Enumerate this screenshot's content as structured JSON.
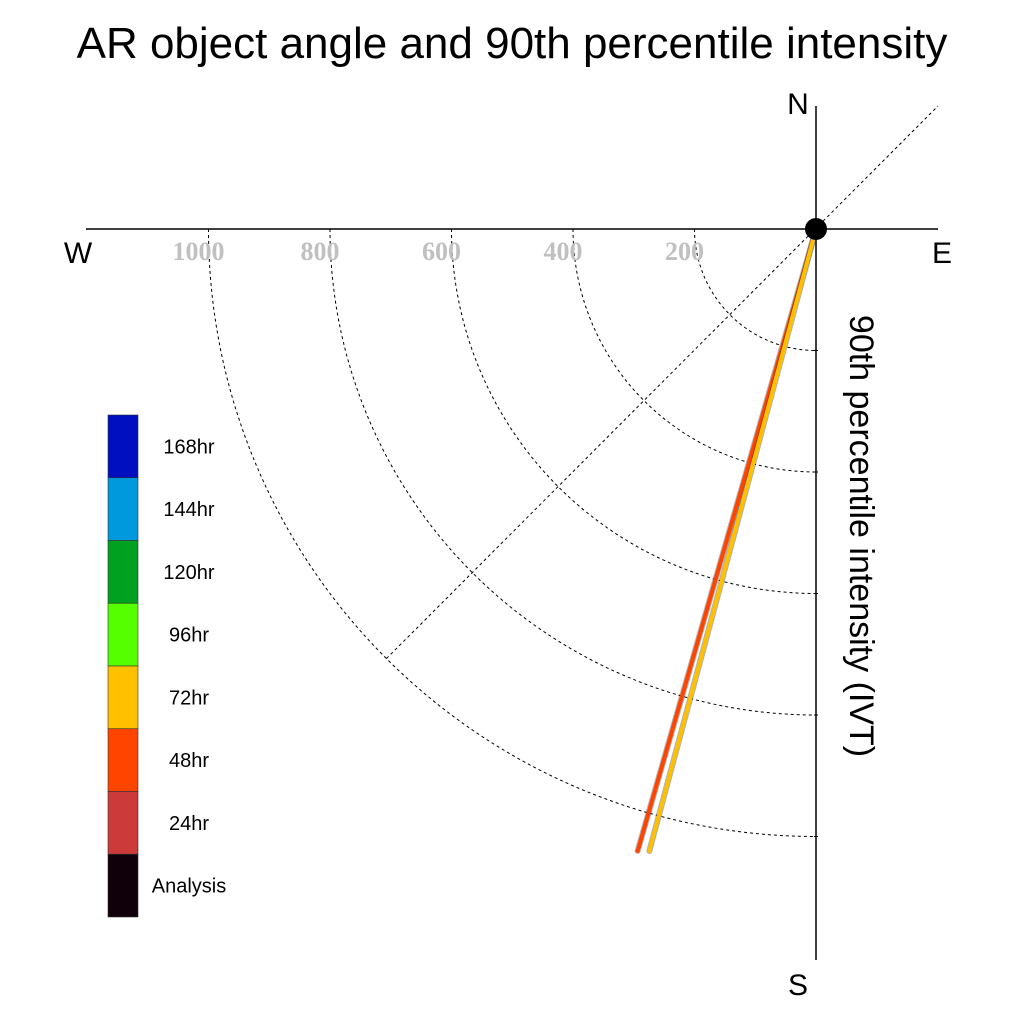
{
  "chart_data": {
    "type": "polar-vector",
    "title": "AR object angle and 90th percentile intensity",
    "ylabel": "90th percentile intensity (IVT)",
    "compass": {
      "north": "N",
      "south": "S",
      "east": "E",
      "west": "W"
    },
    "rings": {
      "values": [
        200,
        400,
        600,
        800,
        1000
      ],
      "labels": [
        "200",
        "400",
        "600",
        "800",
        "1000"
      ],
      "range": [
        0,
        1000
      ]
    },
    "quadrant_shown": "south-west",
    "series": [
      {
        "name": "48hr",
        "color": "#ff4400",
        "angle_deg_from_north": 196.0,
        "intensity": 1065
      },
      {
        "name": "72hr",
        "color": "#ffc000",
        "angle_deg_from_north": 195.0,
        "intensity": 1060
      }
    ],
    "legend": {
      "placement": "left",
      "entries": [
        {
          "label": "168hr",
          "color": "#0010c0"
        },
        {
          "label": "144hr",
          "color": "#0099dd"
        },
        {
          "label": "120hr",
          "color": "#00a020"
        },
        {
          "label": "96hr",
          "color": "#55ff00"
        },
        {
          "label": "72hr",
          "color": "#ffc000"
        },
        {
          "label": "48hr",
          "color": "#ff4400"
        },
        {
          "label": "24hr",
          "color": "#cc3a3a"
        },
        {
          "label": "Analysis",
          "color": "#10000a"
        }
      ]
    },
    "origin_marker_color": "#000000",
    "grid": true
  }
}
